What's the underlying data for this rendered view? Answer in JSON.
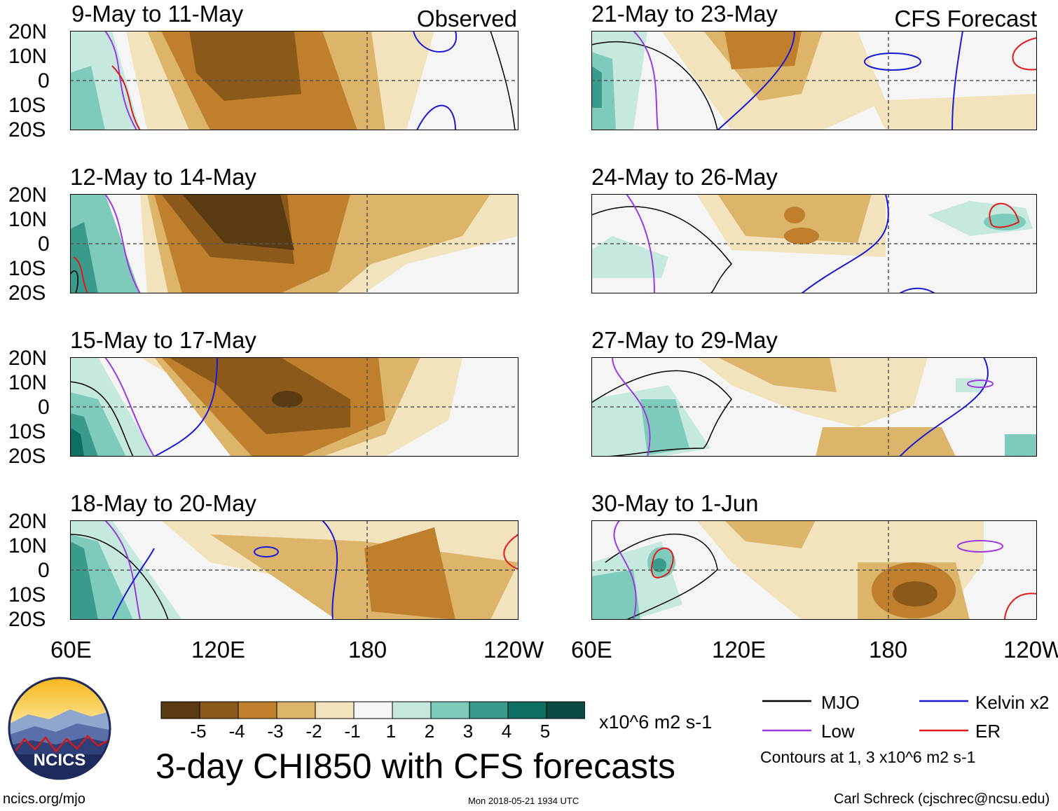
{
  "header": {
    "left_tag": "Observed",
    "right_tag": "CFS Forecast"
  },
  "panels": [
    {
      "title": "9-May to 11-May",
      "column": "left"
    },
    {
      "title": "12-May to 14-May",
      "column": "left"
    },
    {
      "title": "15-May to 17-May",
      "column": "left"
    },
    {
      "title": "18-May to 20-May",
      "column": "left"
    },
    {
      "title": "21-May to 23-May",
      "column": "right"
    },
    {
      "title": "24-May to 26-May",
      "column": "right"
    },
    {
      "title": "27-May to 29-May",
      "column": "right"
    },
    {
      "title": "30-May to 1-Jun",
      "column": "right"
    }
  ],
  "latitude_labels": [
    "20N",
    "10N",
    "0",
    "10S",
    "20S"
  ],
  "longitude_labels": [
    "60E",
    "120E",
    "180",
    "120W"
  ],
  "colorbar": {
    "labels": [
      "-5",
      "-4",
      "-3",
      "-2",
      "-1",
      "1",
      "2",
      "3",
      "4",
      "5"
    ],
    "colors": [
      "#5a3a10",
      "#8b5a1a",
      "#bf7f2d",
      "#dcb56a",
      "#f3e3bd",
      "#f5f5f5",
      "#c5e8df",
      "#7fcbbb",
      "#3a9a8c",
      "#0e6e61",
      "#0a4a42"
    ],
    "units": "x10^6 m2 s-1"
  },
  "main_title": "3-day CHI850 with CFS forecasts",
  "legend": {
    "items": [
      {
        "label": "MJO",
        "color": "#000000"
      },
      {
        "label": "Kelvin x2",
        "color": "#1a1ad6"
      },
      {
        "label": "Low",
        "color": "#9a3ae0"
      },
      {
        "label": "ER",
        "color": "#e01a1a"
      }
    ],
    "contour_note": "Contours at 1, 3 x10^6 m2 s-1"
  },
  "footer": {
    "website": "ncics.org/mjo",
    "timestamp": "Mon 2018-05-21 1934 UTC",
    "credit": "Carl Schreck (cjschrec@ncsu.edu)"
  },
  "logo": {
    "text": "NCICS"
  }
}
